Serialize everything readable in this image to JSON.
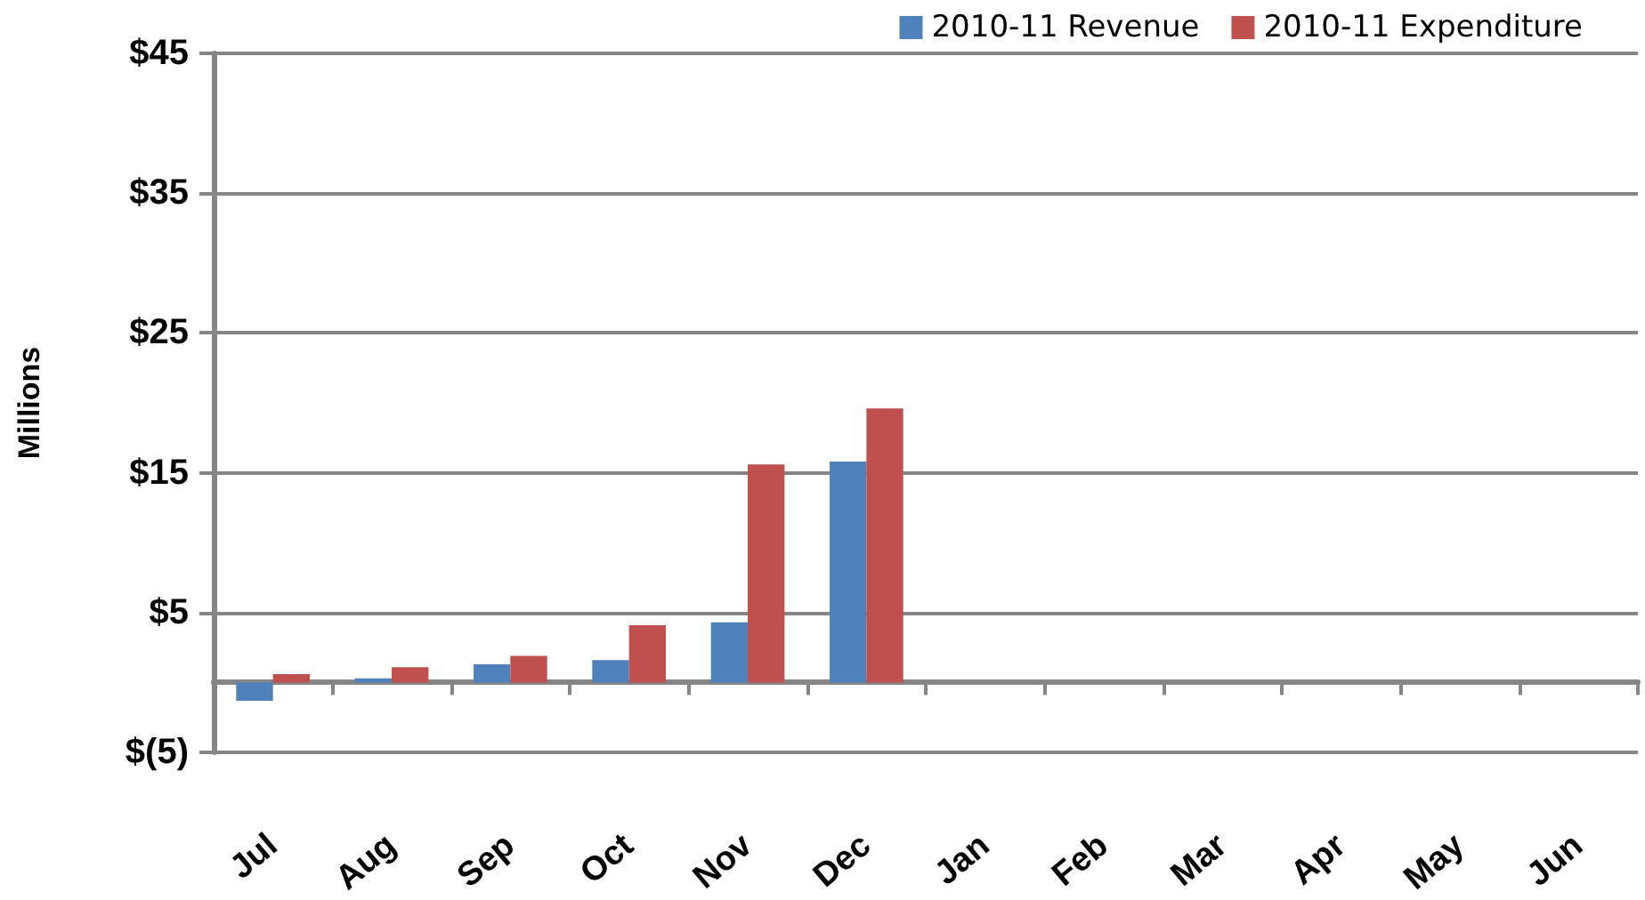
{
  "chart_data": {
    "type": "bar",
    "ylabel": "Millions",
    "categories": [
      "Jul",
      "Aug",
      "Sep",
      "Oct",
      "Nov",
      "Dec",
      "Jan",
      "Feb",
      "Mar",
      "Apr",
      "May",
      "Jun"
    ],
    "series": [
      {
        "name": "2010-11 Revenue",
        "color": "#4f81bd",
        "values": [
          -1.3,
          0.3,
          1.3,
          1.6,
          4.3,
          15.8,
          null,
          null,
          null,
          null,
          null,
          null
        ]
      },
      {
        "name": "2010-11 Expenditure",
        "color": "#c0504d",
        "values": [
          0.6,
          1.1,
          1.9,
          4.1,
          15.6,
          19.6,
          null,
          null,
          null,
          null,
          null,
          null
        ]
      }
    ],
    "ylim": [
      -5,
      45
    ],
    "yticks": [
      {
        "value": -5,
        "label": "$(5)"
      },
      {
        "value": 5,
        "label": "$5"
      },
      {
        "value": 15,
        "label": "$15"
      },
      {
        "value": 25,
        "label": "$25"
      },
      {
        "value": 35,
        "label": "$35"
      },
      {
        "value": 45,
        "label": "$45"
      }
    ],
    "grid": "y",
    "legend": "top right"
  }
}
